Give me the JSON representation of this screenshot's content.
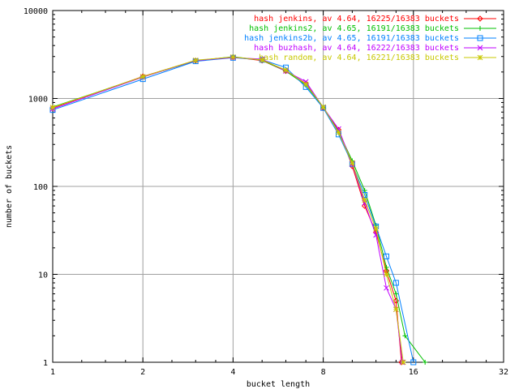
{
  "chart_data": {
    "type": "line",
    "xlabel": "bucket length",
    "ylabel": "number of buckets",
    "x_scale": "log2",
    "y_scale": "log10",
    "xlim": [
      1,
      32
    ],
    "ylim": [
      1,
      10000
    ],
    "x_ticks": [
      1,
      2,
      4,
      8,
      16,
      32
    ],
    "x_tick_labels": [
      "1",
      "2",
      "4",
      "8",
      "16",
      "32"
    ],
    "y_ticks": [
      1,
      10,
      100,
      1000,
      10000
    ],
    "y_tick_labels": [
      "1",
      "10",
      "100",
      "1000",
      "10000"
    ],
    "grid": true,
    "legend_position": "top-right",
    "series": [
      {
        "name": "hash jenkins, av 4.64, 16225/16383 buckets",
        "color": "#ff0000",
        "marker": "diamond",
        "points": [
          [
            1,
            780
          ],
          [
            2,
            1780
          ],
          [
            3,
            2700
          ],
          [
            4,
            2950
          ],
          [
            5,
            2700
          ],
          [
            6,
            2050
          ],
          [
            7,
            1480
          ],
          [
            8,
            780
          ],
          [
            9,
            440
          ],
          [
            10,
            170
          ],
          [
            11,
            60
          ],
          [
            12,
            30
          ],
          [
            13,
            11
          ],
          [
            14,
            5
          ],
          [
            14.6,
            1
          ]
        ]
      },
      {
        "name": "hash jenkins2, av 4.65, 16191/16383 buckets",
        "color": "#00c000",
        "marker": "plus",
        "points": [
          [
            1,
            800
          ],
          [
            2,
            1760
          ],
          [
            3,
            2680
          ],
          [
            4,
            2980
          ],
          [
            5,
            2720
          ],
          [
            6,
            2050
          ],
          [
            7,
            1420
          ],
          [
            8,
            790
          ],
          [
            9,
            420
          ],
          [
            10,
            195
          ],
          [
            11,
            90
          ],
          [
            12,
            36
          ],
          [
            13,
            12
          ],
          [
            14,
            6
          ],
          [
            15,
            2
          ],
          [
            17.5,
            1
          ]
        ]
      },
      {
        "name": "hash jenkins2b, av 4.65, 16191/16383 buckets",
        "color": "#0080ff",
        "marker": "square",
        "points": [
          [
            1,
            740
          ],
          [
            2,
            1660
          ],
          [
            3,
            2650
          ],
          [
            4,
            2900
          ],
          [
            5,
            2750
          ],
          [
            6,
            2250
          ],
          [
            7,
            1350
          ],
          [
            8,
            780
          ],
          [
            9,
            390
          ],
          [
            10,
            180
          ],
          [
            11,
            80
          ],
          [
            12,
            35
          ],
          [
            13,
            16
          ],
          [
            14,
            8
          ],
          [
            16,
            1
          ]
        ]
      },
      {
        "name": "hash buzhash, av 4.64, 16222/16383 buckets",
        "color": "#c000ff",
        "marker": "cross",
        "points": [
          [
            1,
            760
          ],
          [
            2,
            1750
          ],
          [
            3,
            2700
          ],
          [
            4,
            2920
          ],
          [
            5,
            2800
          ],
          [
            6,
            2050
          ],
          [
            7,
            1550
          ],
          [
            8,
            790
          ],
          [
            9,
            450
          ],
          [
            10,
            180
          ],
          [
            11,
            65
          ],
          [
            12,
            28
          ],
          [
            13,
            7
          ],
          [
            14,
            4
          ],
          [
            14.7,
            1
          ]
        ]
      },
      {
        "name": "hash random, av 4.64, 16221/16383 buckets",
        "color": "#c8c800",
        "marker": "star",
        "points": [
          [
            1,
            790
          ],
          [
            2,
            1770
          ],
          [
            3,
            2720
          ],
          [
            4,
            2960
          ],
          [
            5,
            2740
          ],
          [
            6,
            2100
          ],
          [
            7,
            1450
          ],
          [
            8,
            800
          ],
          [
            9,
            410
          ],
          [
            10,
            185
          ],
          [
            11,
            70
          ],
          [
            12,
            33
          ],
          [
            13,
            10
          ],
          [
            14,
            4
          ],
          [
            14.8,
            1
          ]
        ]
      }
    ]
  }
}
